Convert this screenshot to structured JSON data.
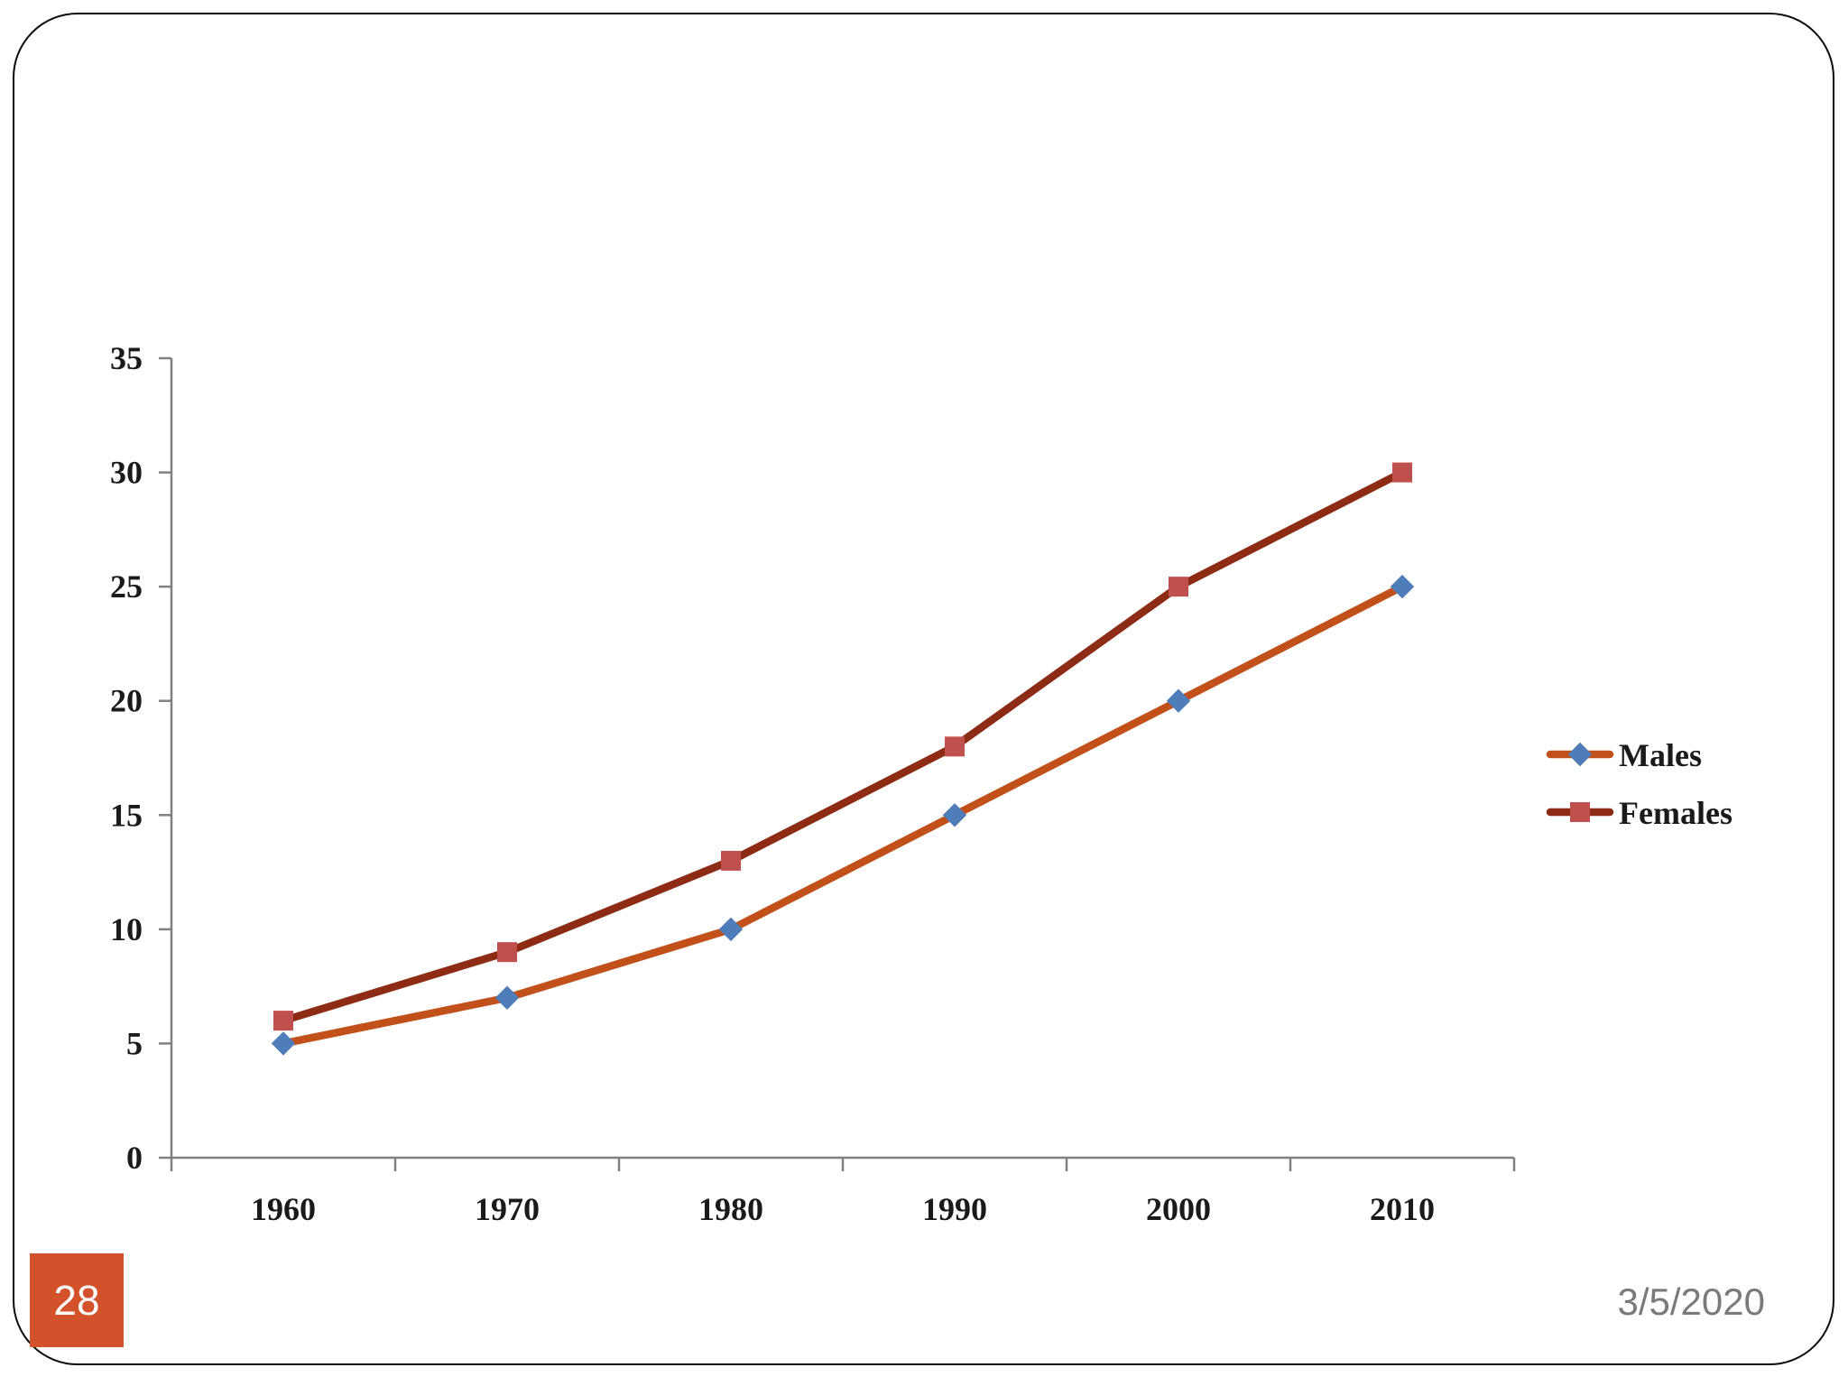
{
  "slide": {
    "page_number": "28",
    "date": "3/5/2020",
    "accent_color": "#D4522B",
    "border_color": "#0b0b0b"
  },
  "chart_data": {
    "type": "line",
    "title": "",
    "xlabel": "",
    "ylabel": "",
    "categories": [
      "1960",
      "1970",
      "1980",
      "1990",
      "2000",
      "2010"
    ],
    "series": [
      {
        "name": "Males",
        "values": [
          5,
          7,
          10,
          15,
          20,
          25
        ],
        "line_color": "#C2501A",
        "marker": "diamond",
        "marker_color": "#4E7DBA"
      },
      {
        "name": "Females",
        "values": [
          6,
          9,
          13,
          18,
          25,
          30
        ],
        "line_color": "#8E2B15",
        "marker": "square",
        "marker_color": "#C0504D"
      }
    ],
    "ylim": [
      0,
      35
    ],
    "ytick_step": 5,
    "grid": false,
    "legend_position": "right",
    "axis_color": "#808080",
    "label_color": "#1a1a1a"
  }
}
